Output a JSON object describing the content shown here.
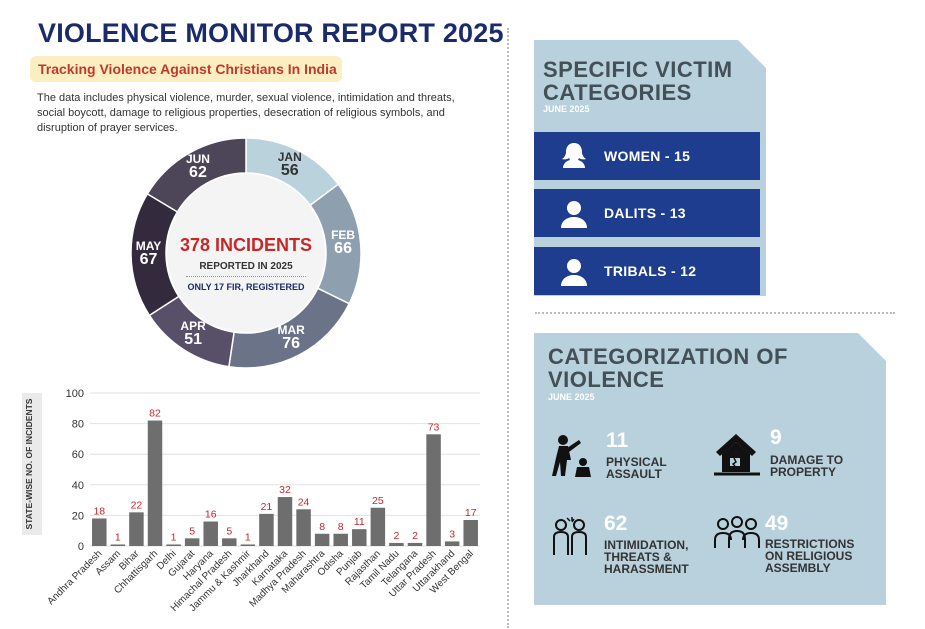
{
  "header": {
    "title": "VIOLENCE MONITOR REPORT 2025",
    "subtitle": "Tracking Violence Against Christians In India",
    "intro": "The data includes physical violence, murder, sexual violence, intimidation and threats, social boycott, damage to religious properties, desecration of religious symbols, and disruption of prayer services."
  },
  "summary": {
    "total": "378 INCIDENTS",
    "reported": "REPORTED IN 2025",
    "fir_note": "ONLY 17 FIR, REGISTERED"
  },
  "victims": {
    "title_line1": "SPECIFIC VICTIM",
    "title_line2": "CATEGORIES",
    "period": "JUNE 2025",
    "items": [
      {
        "label": "WOMEN - 15",
        "icon": "woman-icon"
      },
      {
        "label": "DALITS - 13",
        "icon": "person-icon"
      },
      {
        "label": "TRIBALS - 12",
        "icon": "person-icon"
      }
    ]
  },
  "violence": {
    "title_line1": "CATEGORIZATION OF",
    "title_line2": "VIOLENCE",
    "period": "JUNE 2025",
    "items": [
      {
        "value": "11",
        "line1": "PHYSICAL",
        "line2": "ASSAULT",
        "line3": "",
        "icon": "assault-icon"
      },
      {
        "value": "9",
        "line1": "DAMAGE TO",
        "line2": "PROPERTY",
        "line3": "",
        "icon": "damaged-house-icon"
      },
      {
        "value": "62",
        "line1": "INTIMIDATION,",
        "line2": "THREATS &",
        "line3": "HARASSMENT",
        "icon": "threat-icon"
      },
      {
        "value": "49",
        "line1": "RESTRICTIONS",
        "line2": "ON RELIGIOUS",
        "line3": "ASSEMBLY",
        "icon": "group-icon"
      }
    ]
  },
  "chart_data": [
    {
      "type": "pie",
      "categories": [
        "JAN",
        "FEB",
        "MAR",
        "APR",
        "MAY",
        "JUN"
      ],
      "values": [
        56,
        66,
        76,
        51,
        67,
        62
      ],
      "colors": [
        "#b9d2dc",
        "#8e9fb0",
        "#6b7388",
        "#575068",
        "#342a3e",
        "#4d4658"
      ]
    },
    {
      "type": "bar",
      "ylabel": "STATE-WISE NO. OF INCIDENTS",
      "ylim": [
        0,
        100
      ],
      "yticks": [
        0,
        20,
        40,
        60,
        80,
        100
      ],
      "grid": true,
      "bar_color": "#6e6e6e",
      "label_color": "#c62828",
      "categories": [
        "Andhra Pradesh",
        "Assam",
        "Bihar",
        "Chhattisgarh",
        "Delhi",
        "Gujarat",
        "Haryana",
        "Himachal Pradesh",
        "Jammu & Kashmir",
        "Jharkhand",
        "Karnataka",
        "Madhya Pradesh",
        "Maharashtra",
        "Odisha",
        "Punjab",
        "Rajasthan",
        "Tamil Nadu",
        "Telangana",
        "Uttar Pradesh",
        "Uttarakhand",
        "West Bengal"
      ],
      "values": [
        18,
        1,
        22,
        82,
        1,
        5,
        16,
        5,
        1,
        21,
        32,
        24,
        8,
        8,
        11,
        25,
        2,
        2,
        73,
        3,
        17
      ]
    }
  ]
}
